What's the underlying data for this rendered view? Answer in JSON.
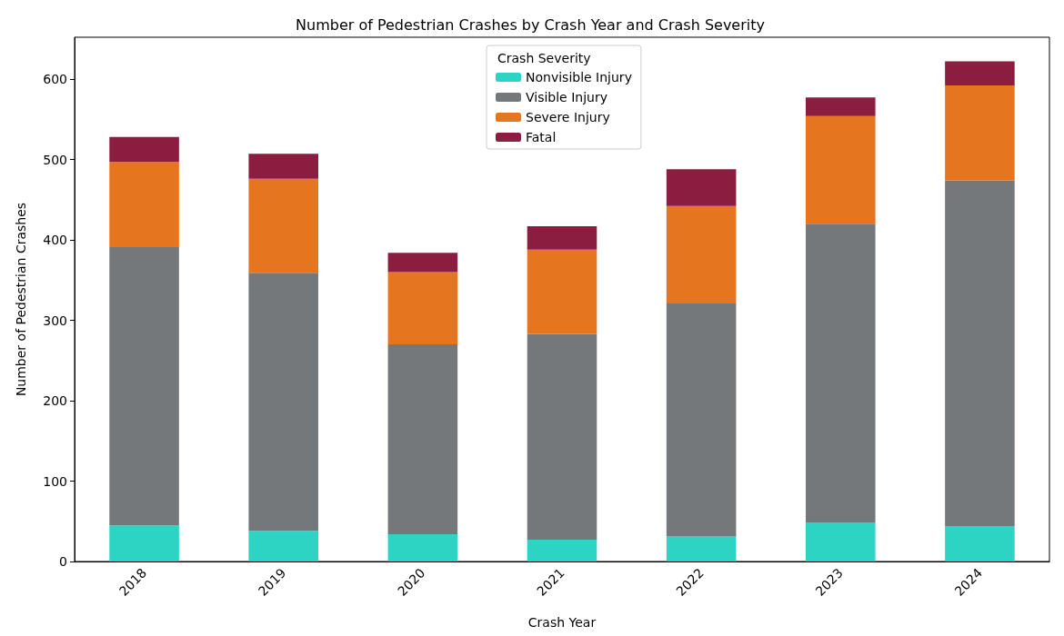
{
  "chart_data": {
    "type": "bar",
    "title": "Number of Pedestrian Crashes by Crash Year and Crash Severity",
    "xlabel": "Crash Year",
    "ylabel": "Number of Pedestrian Crashes",
    "legend_title": "Crash Severity",
    "legend": "top",
    "grid": false,
    "stacked": true,
    "categories": [
      "2018",
      "2019",
      "2020",
      "2021",
      "2022",
      "2023",
      "2024"
    ],
    "ylim": [
      0,
      652
    ],
    "yticks": [
      0,
      100,
      200,
      300,
      400,
      500,
      600
    ],
    "series": [
      {
        "name": "Nonvisible Injury",
        "color": "#2dd4c4",
        "values": [
          45,
          38,
          34,
          27,
          31,
          48,
          44
        ]
      },
      {
        "name": "Visible Injury",
        "color": "#75787b",
        "values": [
          346,
          321,
          236,
          256,
          290,
          372,
          430
        ]
      },
      {
        "name": "Severe Injury",
        "color": "#e5751f",
        "values": [
          106,
          117,
          90,
          105,
          121,
          134,
          118
        ]
      },
      {
        "name": "Fatal",
        "color": "#8b1e40",
        "values": [
          31,
          31,
          24,
          29,
          46,
          23,
          30
        ]
      }
    ]
  }
}
